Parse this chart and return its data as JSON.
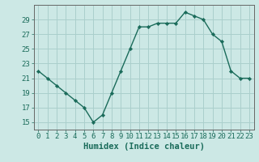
{
  "x": [
    0,
    1,
    2,
    3,
    4,
    5,
    6,
    7,
    8,
    9,
    10,
    11,
    12,
    13,
    14,
    15,
    16,
    17,
    18,
    19,
    20,
    21,
    22,
    23
  ],
  "y": [
    22,
    21,
    20,
    19,
    18,
    17,
    15,
    16,
    19,
    22,
    25,
    28,
    28,
    28.5,
    28.5,
    28.5,
    30,
    29.5,
    29,
    27,
    26,
    22,
    21,
    21
  ],
  "line_color": "#1a6b5a",
  "marker_color": "#1a6b5a",
  "bg_color": "#cce8e5",
  "grid_color": "#aacfcc",
  "xlabel": "Humidex (Indice chaleur)",
  "ylim": [
    14,
    31
  ],
  "xlim": [
    -0.5,
    23.5
  ],
  "yticks": [
    15,
    17,
    19,
    21,
    23,
    25,
    27,
    29
  ],
  "xticks": [
    0,
    1,
    2,
    3,
    4,
    5,
    6,
    7,
    8,
    9,
    10,
    11,
    12,
    13,
    14,
    15,
    16,
    17,
    18,
    19,
    20,
    21,
    22,
    23
  ],
  "tick_fontsize": 6.5,
  "label_fontsize": 7.5
}
